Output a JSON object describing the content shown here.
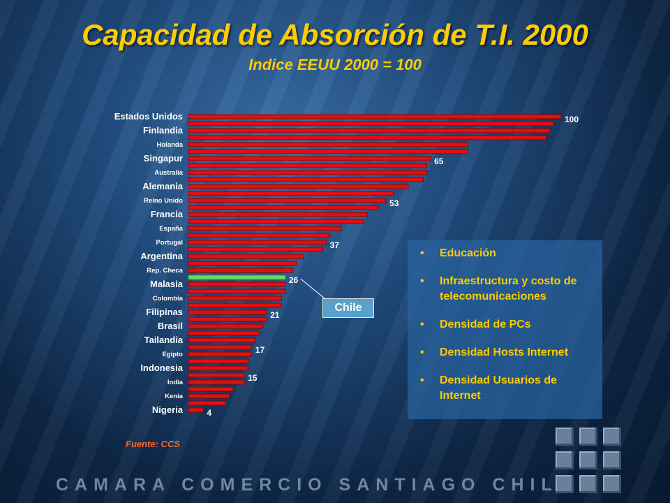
{
  "title": "Capacidad de Absorción de T.I. 2000",
  "subtitle": "Indice EEUU 2000 = 100",
  "chart_data": {
    "type": "bar",
    "orientation": "horizontal",
    "xlim": [
      0,
      100
    ],
    "grid": false,
    "categories": [
      "Estados Unidos",
      "",
      "Finlandia",
      "",
      "Holanda",
      "",
      "Singapur",
      "",
      "Australia",
      "",
      "Alemania",
      "",
      "Reino Unido",
      "",
      "Francia",
      "",
      "España",
      "",
      "Portugal",
      "",
      "Argentina",
      "",
      "Rep. Checa",
      "",
      "Malasia",
      "",
      "Colombia",
      "",
      "Filipinas",
      "",
      "Brasil",
      "",
      "Tailandia",
      "",
      "Egipto",
      "",
      "Indonesia",
      "",
      "India",
      "",
      "Kenia",
      "",
      "Nigeria"
    ],
    "category_emphasis": [
      "large",
      "",
      "large",
      "",
      "small",
      "",
      "large",
      "",
      "small",
      "",
      "large",
      "",
      "small",
      "",
      "large",
      "",
      "small",
      "",
      "small",
      "",
      "large",
      "",
      "small",
      "",
      "large",
      "",
      "small",
      "",
      "large",
      "",
      "large",
      "",
      "large",
      "",
      "small",
      "",
      "large",
      "",
      "small",
      "",
      "small",
      "",
      "large"
    ],
    "values": [
      100,
      98,
      97,
      96,
      75,
      75,
      65,
      64,
      64,
      63,
      59,
      55,
      53,
      51,
      48,
      47,
      41,
      38,
      37,
      36,
      31,
      29,
      28,
      26,
      26,
      26,
      25,
      25,
      21,
      21,
      20,
      19,
      18,
      17,
      17,
      16,
      16,
      15,
      15,
      12,
      11,
      10,
      4
    ],
    "data_labels": {
      "0": "100",
      "6": "65",
      "12": "53",
      "18": "37",
      "23": "26",
      "28": "21",
      "33": "17",
      "37": "15",
      "42": "4"
    },
    "highlight_index": 23,
    "colors": {
      "bar": "#e01010",
      "bar_dark": "#7a0000",
      "highlight": "#66dd55",
      "label": "#ffffff",
      "value": "#ffffff"
    }
  },
  "chile_label": "Chile",
  "factors": [
    "Educación",
    "Infraestructura y costo de telecomunicaciones",
    "Densidad de PCs",
    "Densidad Hosts Internet",
    "Densidad Usuarios de Internet"
  ],
  "bullet": "•",
  "source": "Fuente: CCS",
  "footer": "CAMARA COMERCIO SANTIAGO CHILE",
  "colors": {
    "title": "#ffcc00",
    "factor_text": "#ffcc00",
    "source": "#ff6622",
    "footer": "#6f86a6",
    "panel": "#2864a0"
  }
}
